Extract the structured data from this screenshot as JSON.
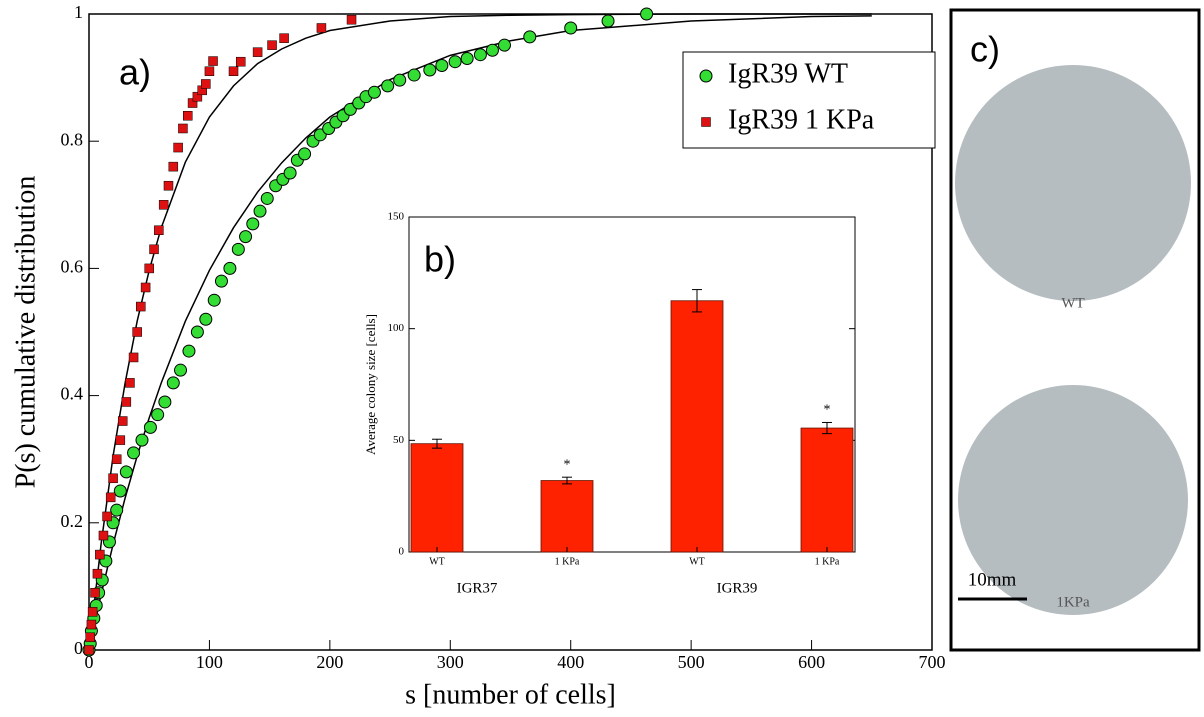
{
  "chart_data": [
    {
      "type": "scatter",
      "annotation": "a)",
      "x_label": "s [number of cells]",
      "y_label": "P(s)  cumulative distribution",
      "xlim": [
        0,
        700
      ],
      "xticks": [
        0,
        100,
        200,
        300,
        400,
        500,
        600,
        700
      ],
      "ylim": [
        0,
        1
      ],
      "yticks": [
        0,
        0.2,
        0.4,
        0.6,
        0.8,
        1
      ],
      "legend": "upper right",
      "series": [
        {
          "name": "IgR39 WT",
          "color": "#33dd33",
          "marker": "circle",
          "x": [
            0,
            1,
            2,
            4,
            6,
            8,
            11,
            14,
            17,
            20,
            23,
            26,
            31,
            37,
            44,
            51,
            57,
            63,
            70,
            76,
            83,
            90,
            97,
            104,
            110,
            117,
            124,
            130,
            136,
            142,
            148,
            155,
            161,
            167,
            173,
            179,
            186,
            192,
            199,
            205,
            211,
            217,
            224,
            230,
            237,
            248,
            258,
            270,
            283,
            293,
            304,
            314,
            325,
            335,
            345,
            366,
            400,
            431,
            463
          ],
          "values": [
            0,
            0.01,
            0.03,
            0.05,
            0.07,
            0.09,
            0.11,
            0.14,
            0.17,
            0.2,
            0.22,
            0.25,
            0.28,
            0.31,
            0.33,
            0.35,
            0.37,
            0.39,
            0.42,
            0.44,
            0.47,
            0.5,
            0.52,
            0.55,
            0.58,
            0.6,
            0.63,
            0.65,
            0.67,
            0.69,
            0.71,
            0.73,
            0.74,
            0.75,
            0.77,
            0.78,
            0.8,
            0.81,
            0.82,
            0.83,
            0.84,
            0.85,
            0.86,
            0.87,
            0.877,
            0.887,
            0.896,
            0.904,
            0.912,
            0.919,
            0.925,
            0.93,
            0.936,
            0.943,
            0.951,
            0.964,
            0.978,
            0.989,
            1
          ]
        },
        {
          "name": "IgR39 1 KPa",
          "color": "#dd1111",
          "marker": "square",
          "x": [
            0,
            1,
            2,
            3,
            5,
            7,
            9,
            12,
            15,
            18,
            20,
            23,
            26,
            28,
            31,
            34,
            37,
            40,
            43,
            47,
            50,
            54,
            58,
            62,
            66,
            70,
            74,
            78,
            82,
            86,
            90,
            94,
            97,
            100,
            103,
            120,
            126,
            140,
            152,
            162,
            193,
            218
          ],
          "values": [
            0,
            0.02,
            0.04,
            0.06,
            0.09,
            0.12,
            0.15,
            0.18,
            0.21,
            0.24,
            0.27,
            0.3,
            0.33,
            0.36,
            0.39,
            0.42,
            0.46,
            0.5,
            0.54,
            0.57,
            0.6,
            0.63,
            0.66,
            0.7,
            0.73,
            0.76,
            0.79,
            0.82,
            0.84,
            0.86,
            0.87,
            0.88,
            0.89,
            0.91,
            0.926,
            0.91,
            0.925,
            0.94,
            0.951,
            0.962,
            0.978,
            0.991
          ]
        },
        {
          "color": "#000000",
          "marker": "line",
          "x": [
            0,
            10,
            20,
            30,
            40,
            50,
            60,
            80,
            100,
            120,
            140,
            160,
            180,
            200,
            250,
            300,
            350,
            400,
            500,
            600,
            650
          ],
          "values": [
            0,
            0.087,
            0.166,
            0.239,
            0.305,
            0.365,
            0.42,
            0.517,
            0.597,
            0.664,
            0.72,
            0.766,
            0.805,
            0.838,
            0.897,
            0.935,
            0.958,
            0.974,
            0.989,
            0.996,
            0.997
          ]
        },
        {
          "color": "#000000",
          "marker": "line",
          "x": [
            0,
            10,
            20,
            30,
            40,
            50,
            60,
            80,
            100,
            120,
            140,
            160,
            180,
            200,
            250,
            300,
            350,
            400,
            500,
            600,
            650
          ],
          "values": [
            0,
            0.166,
            0.305,
            0.42,
            0.517,
            0.597,
            0.664,
            0.767,
            0.838,
            0.887,
            0.922,
            0.945,
            0.962,
            0.974,
            0.989,
            0.996,
            0.998,
            0.999,
            1,
            1,
            1
          ]
        }
      ]
    },
    {
      "type": "bar",
      "annotation": "b)",
      "y_label": "Average colony size [cells]",
      "categories": [
        "WT",
        "1 KPa",
        "WT",
        "1 KPa"
      ],
      "groups": [
        "IGR37",
        "IGR39"
      ],
      "values": [
        48.5,
        32,
        112.5,
        55.5
      ],
      "errors": [
        2,
        1.5,
        5,
        2.5
      ],
      "markers": [
        null,
        "*",
        null,
        "*"
      ],
      "color": "#ff2200",
      "ylim": [
        0,
        150
      ],
      "yticks": [
        0,
        50,
        100,
        150
      ]
    }
  ],
  "panel_c": {
    "label": "c)",
    "images": [
      {
        "label": "WT"
      },
      {
        "label": "1KPa"
      }
    ],
    "scale_bar": "10mm"
  }
}
